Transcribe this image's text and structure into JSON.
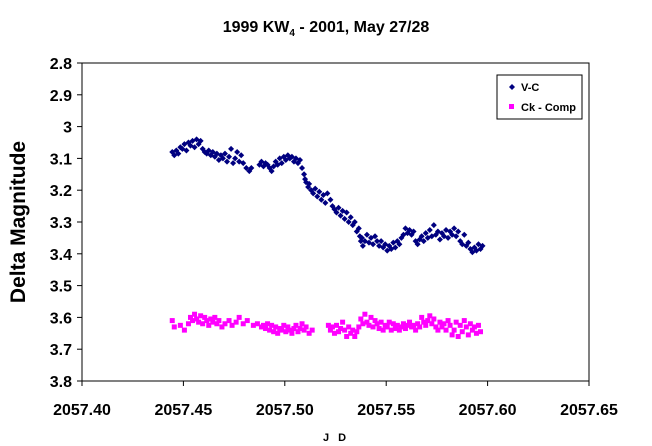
{
  "chart_data": {
    "type": "scatter",
    "title_main": "1999 KW",
    "title_sub": "4",
    "title_rest": " - 2001, May 27/28",
    "xlabel": "J D",
    "ylabel": "Delta Magnitude",
    "xlim": [
      2057.4,
      2057.65
    ],
    "ylim": [
      2.8,
      3.8
    ],
    "y_reversed": true,
    "x_ticks": [
      "2057.40",
      "2057.45",
      "2057.50",
      "2057.55",
      "2057.60",
      "2057.65"
    ],
    "y_ticks": [
      "2.8",
      "2.9",
      "3",
      "3.1",
      "3.2",
      "3.3",
      "3.4",
      "3.5",
      "3.6",
      "3.7",
      "3.8"
    ],
    "grid": false,
    "legend_position": "top-right",
    "series": [
      {
        "name": "V-C",
        "color": "#000080",
        "marker": "diamond",
        "points": [
          [
            2057.4445,
            3.08
          ],
          [
            2057.4455,
            3.09
          ],
          [
            2057.4465,
            3.075
          ],
          [
            2057.4475,
            3.085
          ],
          [
            2057.4485,
            3.065
          ],
          [
            2057.4495,
            3.07
          ],
          [
            2057.4505,
            3.055
          ],
          [
            2057.4515,
            3.075
          ],
          [
            2057.4525,
            3.05
          ],
          [
            2057.4535,
            3.06
          ],
          [
            2057.4545,
            3.045
          ],
          [
            2057.4555,
            3.065
          ],
          [
            2057.4565,
            3.04
          ],
          [
            2057.4575,
            3.055
          ],
          [
            2057.4585,
            3.045
          ],
          [
            2057.4595,
            3.07
          ],
          [
            2057.4605,
            3.08
          ],
          [
            2057.4615,
            3.085
          ],
          [
            2057.4625,
            3.075
          ],
          [
            2057.4635,
            3.09
          ],
          [
            2057.4645,
            3.08
          ],
          [
            2057.4655,
            3.095
          ],
          [
            2057.4665,
            3.085
          ],
          [
            2057.4675,
            3.105
          ],
          [
            2057.4685,
            3.09
          ],
          [
            2057.4695,
            3.1
          ],
          [
            2057.4705,
            3.085
          ],
          [
            2057.4715,
            3.11
          ],
          [
            2057.4725,
            3.095
          ],
          [
            2057.4735,
            3.07
          ],
          [
            2057.4745,
            3.115
          ],
          [
            2057.4755,
            3.1
          ],
          [
            2057.4765,
            3.08
          ],
          [
            2057.4775,
            3.11
          ],
          [
            2057.4785,
            3.09
          ],
          [
            2057.4795,
            3.115
          ],
          [
            2057.481,
            3.13
          ],
          [
            2057.4825,
            3.14
          ],
          [
            2057.4835,
            3.13
          ],
          [
            2057.4875,
            3.12
          ],
          [
            2057.4885,
            3.11
          ],
          [
            2057.4895,
            3.125
          ],
          [
            2057.4905,
            3.115
          ],
          [
            2057.4915,
            3.12
          ],
          [
            2057.4925,
            3.13
          ],
          [
            2057.4935,
            3.14
          ],
          [
            2057.4945,
            3.125
          ],
          [
            2057.4955,
            3.11
          ],
          [
            2057.4965,
            3.12
          ],
          [
            2057.4975,
            3.1
          ],
          [
            2057.4985,
            3.115
          ],
          [
            2057.4995,
            3.095
          ],
          [
            2057.5005,
            3.105
          ],
          [
            2057.5015,
            3.09
          ],
          [
            2057.5025,
            3.1
          ],
          [
            2057.5035,
            3.095
          ],
          [
            2057.5045,
            3.11
          ],
          [
            2057.5055,
            3.1
          ],
          [
            2057.5065,
            3.115
          ],
          [
            2057.5075,
            3.105
          ],
          [
            2057.5085,
            3.13
          ],
          [
            2057.5095,
            3.15
          ],
          [
            2057.51,
            3.165
          ],
          [
            2057.5105,
            3.175
          ],
          [
            2057.5115,
            3.19
          ],
          [
            2057.512,
            3.18
          ],
          [
            2057.513,
            3.2
          ],
          [
            2057.514,
            3.21
          ],
          [
            2057.515,
            3.195
          ],
          [
            2057.516,
            3.22
          ],
          [
            2057.517,
            3.205
          ],
          [
            2057.518,
            3.23
          ],
          [
            2057.519,
            3.215
          ],
          [
            2057.52,
            3.24
          ],
          [
            2057.521,
            3.21
          ],
          [
            2057.5225,
            3.23
          ],
          [
            2057.5235,
            3.25
          ],
          [
            2057.5245,
            3.26
          ],
          [
            2057.5255,
            3.27
          ],
          [
            2057.5265,
            3.255
          ],
          [
            2057.5275,
            3.28
          ],
          [
            2057.5285,
            3.265
          ],
          [
            2057.5295,
            3.29
          ],
          [
            2057.5305,
            3.27
          ],
          [
            2057.5315,
            3.3
          ],
          [
            2057.5325,
            3.285
          ],
          [
            2057.5335,
            3.31
          ],
          [
            2057.5345,
            3.3
          ],
          [
            2057.5355,
            3.33
          ],
          [
            2057.5365,
            3.32
          ],
          [
            2057.537,
            3.345
          ],
          [
            2057.5375,
            3.36
          ],
          [
            2057.538,
            3.35
          ],
          [
            2057.5385,
            3.375
          ],
          [
            2057.5395,
            3.36
          ],
          [
            2057.5405,
            3.34
          ],
          [
            2057.5415,
            3.365
          ],
          [
            2057.5425,
            3.35
          ],
          [
            2057.5435,
            3.37
          ],
          [
            2057.5445,
            3.345
          ],
          [
            2057.5455,
            3.36
          ],
          [
            2057.5465,
            3.375
          ],
          [
            2057.5475,
            3.36
          ],
          [
            2057.5485,
            3.38
          ],
          [
            2057.5495,
            3.37
          ],
          [
            2057.5505,
            3.39
          ],
          [
            2057.5515,
            3.375
          ],
          [
            2057.5525,
            3.385
          ],
          [
            2057.5535,
            3.365
          ],
          [
            2057.5545,
            3.38
          ],
          [
            2057.5555,
            3.36
          ],
          [
            2057.5565,
            3.37
          ],
          [
            2057.5575,
            3.35
          ],
          [
            2057.5585,
            3.34
          ],
          [
            2057.5595,
            3.32
          ],
          [
            2057.5605,
            3.335
          ],
          [
            2057.5615,
            3.325
          ],
          [
            2057.5625,
            3.34
          ],
          [
            2057.5635,
            3.33
          ],
          [
            2057.5645,
            3.36
          ],
          [
            2057.5655,
            3.37
          ],
          [
            2057.5665,
            3.355
          ],
          [
            2057.5675,
            3.345
          ],
          [
            2057.5685,
            3.36
          ],
          [
            2057.5695,
            3.335
          ],
          [
            2057.5705,
            3.35
          ],
          [
            2057.5715,
            3.325
          ],
          [
            2057.5725,
            3.345
          ],
          [
            2057.5735,
            3.31
          ],
          [
            2057.5745,
            3.34
          ],
          [
            2057.5755,
            3.33
          ],
          [
            2057.5765,
            3.355
          ],
          [
            2057.5775,
            3.335
          ],
          [
            2057.5785,
            3.345
          ],
          [
            2057.5795,
            3.325
          ],
          [
            2057.5805,
            3.35
          ],
          [
            2057.5815,
            3.33
          ],
          [
            2057.5825,
            3.34
          ],
          [
            2057.5835,
            3.32
          ],
          [
            2057.5845,
            3.345
          ],
          [
            2057.5855,
            3.33
          ],
          [
            2057.5865,
            3.36
          ],
          [
            2057.5875,
            3.37
          ],
          [
            2057.5885,
            3.34
          ],
          [
            2057.5895,
            3.375
          ],
          [
            2057.5905,
            3.365
          ],
          [
            2057.5915,
            3.385
          ],
          [
            2057.5925,
            3.395
          ],
          [
            2057.5935,
            3.38
          ],
          [
            2057.5945,
            3.39
          ],
          [
            2057.5955,
            3.37
          ],
          [
            2057.5965,
            3.385
          ],
          [
            2057.5975,
            3.375
          ]
        ]
      },
      {
        "name": "Ck - Comp",
        "color": "#ff00ff",
        "marker": "square",
        "points": [
          [
            2057.4445,
            3.61
          ],
          [
            2057.4455,
            3.63
          ],
          [
            2057.4485,
            3.625
          ],
          [
            2057.4505,
            3.64
          ],
          [
            2057.4525,
            3.62
          ],
          [
            2057.4535,
            3.6
          ],
          [
            2057.4545,
            3.61
          ],
          [
            2057.4555,
            3.59
          ],
          [
            2057.4565,
            3.605
          ],
          [
            2057.4575,
            3.615
          ],
          [
            2057.4585,
            3.595
          ],
          [
            2057.4595,
            3.62
          ],
          [
            2057.4605,
            3.6
          ],
          [
            2057.4615,
            3.61
          ],
          [
            2057.4625,
            3.625
          ],
          [
            2057.4635,
            3.605
          ],
          [
            2057.4645,
            3.615
          ],
          [
            2057.4655,
            3.6
          ],
          [
            2057.4665,
            3.62
          ],
          [
            2057.4675,
            3.61
          ],
          [
            2057.469,
            3.63
          ],
          [
            2057.4705,
            3.62
          ],
          [
            2057.4725,
            3.61
          ],
          [
            2057.474,
            3.625
          ],
          [
            2057.476,
            3.615
          ],
          [
            2057.4775,
            3.6
          ],
          [
            2057.4795,
            3.62
          ],
          [
            2057.4815,
            3.61
          ],
          [
            2057.4845,
            3.625
          ],
          [
            2057.4865,
            3.62
          ],
          [
            2057.4885,
            3.63
          ],
          [
            2057.4895,
            3.625
          ],
          [
            2057.4905,
            3.635
          ],
          [
            2057.4915,
            3.62
          ],
          [
            2057.4925,
            3.64
          ],
          [
            2057.4935,
            3.625
          ],
          [
            2057.4945,
            3.645
          ],
          [
            2057.4955,
            3.63
          ],
          [
            2057.4965,
            3.65
          ],
          [
            2057.4975,
            3.635
          ],
          [
            2057.4985,
            3.64
          ],
          [
            2057.4995,
            3.625
          ],
          [
            2057.5005,
            3.645
          ],
          [
            2057.5015,
            3.63
          ],
          [
            2057.5025,
            3.64
          ],
          [
            2057.5035,
            3.65
          ],
          [
            2057.5045,
            3.635
          ],
          [
            2057.5055,
            3.625
          ],
          [
            2057.5065,
            3.645
          ],
          [
            2057.5075,
            3.635
          ],
          [
            2057.5085,
            3.62
          ],
          [
            2057.5095,
            3.64
          ],
          [
            2057.5105,
            3.63
          ],
          [
            2057.512,
            3.65
          ],
          [
            2057.5135,
            3.64
          ],
          [
            2057.5215,
            3.625
          ],
          [
            2057.5225,
            3.64
          ],
          [
            2057.5235,
            3.63
          ],
          [
            2057.5245,
            3.65
          ],
          [
            2057.5255,
            3.625
          ],
          [
            2057.5265,
            3.645
          ],
          [
            2057.5275,
            3.635
          ],
          [
            2057.5285,
            3.615
          ],
          [
            2057.5295,
            3.64
          ],
          [
            2057.5305,
            3.66
          ],
          [
            2057.5315,
            3.63
          ],
          [
            2057.5325,
            3.65
          ],
          [
            2057.5335,
            3.64
          ],
          [
            2057.5345,
            3.66
          ],
          [
            2057.5355,
            3.645
          ],
          [
            2057.5365,
            3.63
          ],
          [
            2057.5375,
            3.605
          ],
          [
            2057.5385,
            3.62
          ],
          [
            2057.5395,
            3.59
          ],
          [
            2057.5405,
            3.615
          ],
          [
            2057.5415,
            3.625
          ],
          [
            2057.5425,
            3.6
          ],
          [
            2057.5435,
            3.63
          ],
          [
            2057.5445,
            3.61
          ],
          [
            2057.5455,
            3.62
          ],
          [
            2057.5465,
            3.635
          ],
          [
            2057.5475,
            3.615
          ],
          [
            2057.5485,
            3.64
          ],
          [
            2057.5495,
            3.625
          ],
          [
            2057.5505,
            3.63
          ],
          [
            2057.5515,
            3.615
          ],
          [
            2057.5525,
            3.64
          ],
          [
            2057.5535,
            3.62
          ],
          [
            2057.5545,
            3.635
          ],
          [
            2057.5555,
            3.625
          ],
          [
            2057.5565,
            3.64
          ],
          [
            2057.5575,
            3.63
          ],
          [
            2057.5585,
            3.62
          ],
          [
            2057.5595,
            3.635
          ],
          [
            2057.5605,
            3.625
          ],
          [
            2057.5615,
            3.615
          ],
          [
            2057.5625,
            3.63
          ],
          [
            2057.5635,
            3.625
          ],
          [
            2057.5645,
            3.64
          ],
          [
            2057.5655,
            3.62
          ],
          [
            2057.5665,
            3.63
          ],
          [
            2057.5675,
            3.6
          ],
          [
            2057.5685,
            3.615
          ],
          [
            2057.5695,
            3.625
          ],
          [
            2057.5705,
            3.61
          ],
          [
            2057.5715,
            3.595
          ],
          [
            2057.5725,
            3.62
          ],
          [
            2057.5735,
            3.605
          ],
          [
            2057.5745,
            3.63
          ],
          [
            2057.5755,
            3.64
          ],
          [
            2057.5765,
            3.615
          ],
          [
            2057.5775,
            3.63
          ],
          [
            2057.5785,
            3.62
          ],
          [
            2057.5795,
            3.64
          ],
          [
            2057.5805,
            3.61
          ],
          [
            2057.5815,
            3.625
          ],
          [
            2057.5825,
            3.655
          ],
          [
            2057.5835,
            3.64
          ],
          [
            2057.5845,
            3.615
          ],
          [
            2057.5855,
            3.66
          ],
          [
            2057.5865,
            3.625
          ],
          [
            2057.5875,
            3.645
          ],
          [
            2057.5885,
            3.61
          ],
          [
            2057.5895,
            3.63
          ],
          [
            2057.5905,
            3.655
          ],
          [
            2057.5915,
            3.62
          ],
          [
            2057.5925,
            3.64
          ],
          [
            2057.5935,
            3.63
          ],
          [
            2057.5945,
            3.65
          ],
          [
            2057.5955,
            3.625
          ],
          [
            2057.5965,
            3.645
          ]
        ]
      }
    ]
  }
}
